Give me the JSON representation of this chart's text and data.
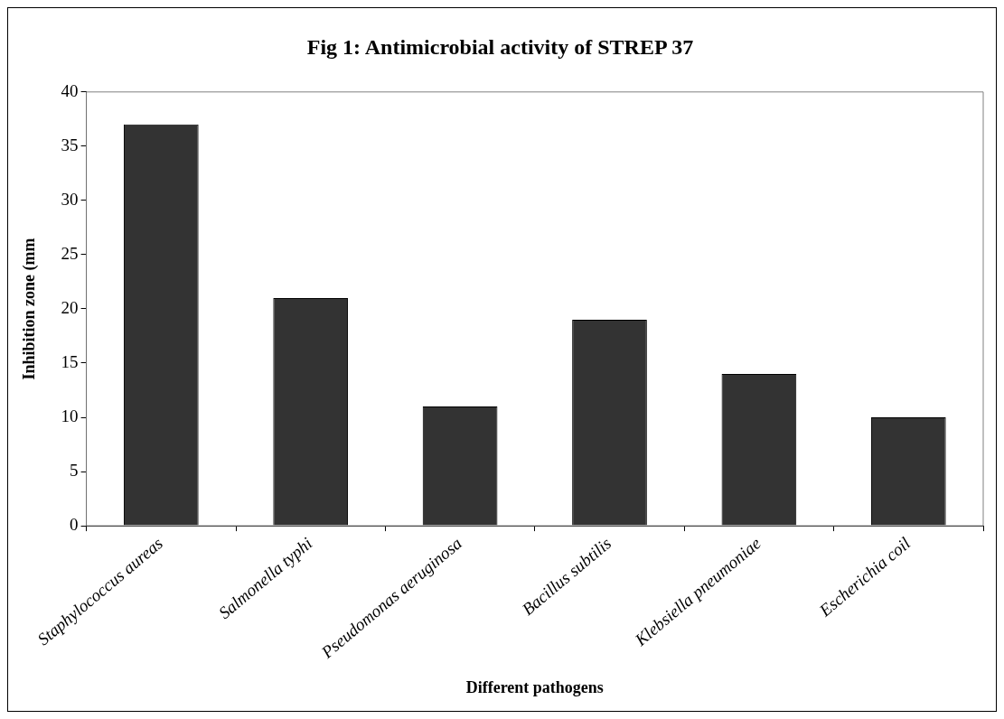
{
  "chart_data": {
    "type": "bar",
    "title": "Fig 1: Antimicrobial activity of STREP 37",
    "xlabel": "Different pathogens",
    "ylabel": "Inhibition zone (mm",
    "categories": [
      "Staphylococcus aureas",
      "Salmonella typhi",
      "Pseudomonas aeruginosa",
      "Bacillus subtilis",
      "Klebsiella pneumoniae",
      "Escherichia coil"
    ],
    "values": [
      37,
      21,
      11,
      19,
      14,
      10
    ],
    "color": "#333333",
    "ylim": [
      0,
      40
    ],
    "yticks": [
      0,
      5,
      10,
      15,
      20,
      25,
      30,
      35,
      40
    ],
    "grid": false,
    "legend": false
  }
}
